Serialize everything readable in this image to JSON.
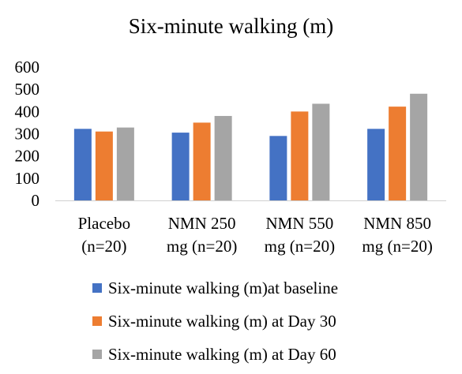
{
  "chart_data": {
    "type": "bar",
    "title": "Six-minute walking (m)",
    "categories": [
      [
        "Placebo",
        "(n=20)"
      ],
      [
        "NMN 250",
        "mg (n=20)"
      ],
      [
        "NMN 550",
        "mg (n=20)"
      ],
      [
        "NMN 850",
        "mg (n=20)"
      ]
    ],
    "series": [
      {
        "name": "Six-minute walking (m)at baseline",
        "values": [
          322,
          305,
          290,
          322
        ],
        "color": "#4472C4"
      },
      {
        "name": "Six-minute walking (m) at Day 30",
        "values": [
          310,
          350,
          400,
          422
        ],
        "color": "#ED7D31"
      },
      {
        "name": "Six-minute walking (m) at Day 60",
        "values": [
          328,
          380,
          435,
          480
        ],
        "color": "#A5A5A5"
      }
    ],
    "yticks": [
      "0",
      "100",
      "200",
      "300",
      "400",
      "500",
      "600"
    ],
    "ylim": [
      0,
      600
    ],
    "grid": false,
    "legend_position": "bottom",
    "xlabel": "",
    "ylabel": ""
  }
}
